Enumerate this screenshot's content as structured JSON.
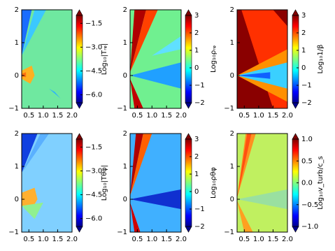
{
  "chart_data": [
    {
      "type": "heatmap",
      "colormap": "jet",
      "colorbar_label": "Log₁₀|Tᵣᵩ|",
      "xlim": [
        0.25,
        2.0
      ],
      "xticks": [
        0.5,
        {
          "value": 1.0,
          "label": "1.0"
        },
        1.5,
        {
          "value": 2.0,
          "label": "2.0"
        }
      ],
      "ylim": [
        -1,
        2
      ],
      "yticks": [
        {
          "value": -1,
          "label": "−1"
        },
        0,
        1,
        2
      ],
      "clim": [
        -6.5,
        -1
      ],
      "cticks": [
        {
          "value": -6.0,
          "label": "−6.0"
        },
        {
          "value": -4.5,
          "label": "−4.5"
        },
        {
          "value": -3.0,
          "label": "−3.0"
        },
        {
          "value": -1.5,
          "label": "−1.5"
        }
      ]
    },
    {
      "type": "heatmap",
      "colormap": "jet",
      "colorbar_label": "Log₁₀ρᵣᵩ",
      "xlim": [
        0.25,
        2.0
      ],
      "xticks": [
        0.5,
        {
          "value": 1.0,
          "label": "1.0"
        },
        1.5,
        {
          "value": 2.0,
          "label": "2.0"
        }
      ],
      "ylim": [
        -1,
        2
      ],
      "yticks": [
        {
          "value": -1,
          "label": "−1"
        },
        0,
        1,
        2
      ],
      "clim": [
        -2,
        3
      ],
      "cticks": [
        {
          "value": -2,
          "label": "−2"
        },
        {
          "value": -1,
          "label": "−1"
        },
        0,
        1,
        2,
        3
      ]
    },
    {
      "type": "heatmap",
      "colormap": "jet",
      "colorbar_label": "Log₁₀1/β",
      "xlim": [
        0.25,
        2.0
      ],
      "xticks": [
        0.5,
        {
          "value": 1.0,
          "label": "1.0"
        },
        1.5,
        {
          "value": 2.0,
          "label": "2.0"
        }
      ],
      "ylim": [
        -1,
        2
      ],
      "yticks": [
        {
          "value": -1,
          "label": "−1"
        },
        0,
        1,
        2
      ],
      "clim": [
        -2,
        3
      ],
      "cticks": [
        {
          "value": -2,
          "label": "−2"
        },
        {
          "value": -1,
          "label": "−1"
        },
        0,
        1,
        2,
        3
      ]
    },
    {
      "type": "heatmap",
      "colormap": "jet",
      "colorbar_label": "Log₁₀|Tθφ|",
      "xlim": [
        0.25,
        2.0
      ],
      "xticks": [
        0.5,
        {
          "value": 1.0,
          "label": "1.0"
        },
        1.5,
        {
          "value": 2.0,
          "label": "2.0"
        }
      ],
      "ylim": [
        -1,
        2
      ],
      "yticks": [
        {
          "value": -1,
          "label": "−1"
        },
        0,
        1,
        2
      ],
      "clim": [
        -6.5,
        -1
      ],
      "cticks": [
        {
          "value": -6.0,
          "label": "−6.0"
        },
        {
          "value": -4.5,
          "label": "−4.5"
        },
        {
          "value": -3.0,
          "label": "−3.0"
        },
        {
          "value": -1.5,
          "label": "−1.5"
        }
      ]
    },
    {
      "type": "heatmap",
      "colormap": "jet",
      "colorbar_label": "Log₁₀ρθφ",
      "xlim": [
        0.25,
        2.0
      ],
      "xticks": [
        0.5,
        {
          "value": 1.0,
          "label": "1.0"
        },
        1.5,
        {
          "value": 2.0,
          "label": "2.0"
        }
      ],
      "ylim": [
        -1,
        2
      ],
      "yticks": [
        {
          "value": -1,
          "label": "−1"
        },
        0,
        1,
        2
      ],
      "clim": [
        -2,
        3
      ],
      "cticks": [
        {
          "value": -2,
          "label": "−2"
        },
        {
          "value": -1,
          "label": "−1"
        },
        0,
        1,
        2,
        3
      ]
    },
    {
      "type": "heatmap",
      "colormap": "jet",
      "colorbar_label": "Log₁₀v_turb/c_s",
      "xlim": [
        0.25,
        2.0
      ],
      "xticks": [
        0.5,
        {
          "value": 1.0,
          "label": "1.0"
        },
        1.5,
        {
          "value": 2.0,
          "label": "2.0"
        }
      ],
      "ylim": [
        -1,
        2
      ],
      "yticks": [
        {
          "value": -1,
          "label": "−1"
        },
        0,
        1,
        2
      ],
      "clim": [
        -1,
        1
      ],
      "cticks": [
        {
          "value": -1.0,
          "label": "−1.0"
        },
        {
          "value": -0.5,
          "label": "−0.5"
        },
        {
          "value": 0.0,
          "label": "0.0"
        },
        {
          "value": 0.5,
          "label": "0.5"
        },
        {
          "value": 1.0,
          "label": "1.0"
        }
      ]
    }
  ]
}
